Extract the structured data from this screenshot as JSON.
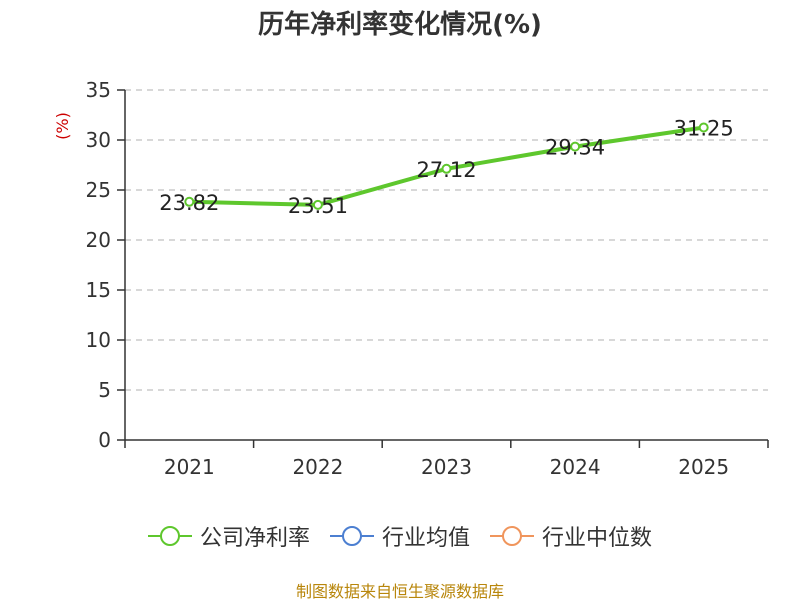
{
  "title": "历年净利率变化情况(%)",
  "source": "制图数据来自恒生聚源数据库",
  "colors": {
    "series": "#5ec72d",
    "industry_avg": "#4c7fd1",
    "industry_median": "#f0955c",
    "ylabel": "#cc0000",
    "grid": "#cccccc",
    "axis": "#333333"
  },
  "chart_data": {
    "type": "line",
    "title": "历年净利率变化情况(%)",
    "ylabel": "(%)",
    "xlabel": "",
    "ylim": [
      0,
      35
    ],
    "yticks": [
      0,
      5,
      10,
      15,
      20,
      25,
      30,
      35
    ],
    "categories": [
      "2021",
      "2022",
      "2023",
      "2024",
      "2025"
    ],
    "series": [
      {
        "name": "公司净利率",
        "values": [
          23.82,
          23.51,
          27.12,
          29.34,
          31.25
        ],
        "labels": [
          "23.82",
          "23.51",
          "27.12",
          "29.34",
          "31.25"
        ]
      }
    ],
    "grid": "horizontal-dashed",
    "legend_position": "bottom"
  },
  "legend": [
    {
      "label": "公司净利率",
      "color_key": "series"
    },
    {
      "label": "行业均值",
      "color_key": "industry_avg"
    },
    {
      "label": "行业中位数",
      "color_key": "industry_median"
    }
  ]
}
